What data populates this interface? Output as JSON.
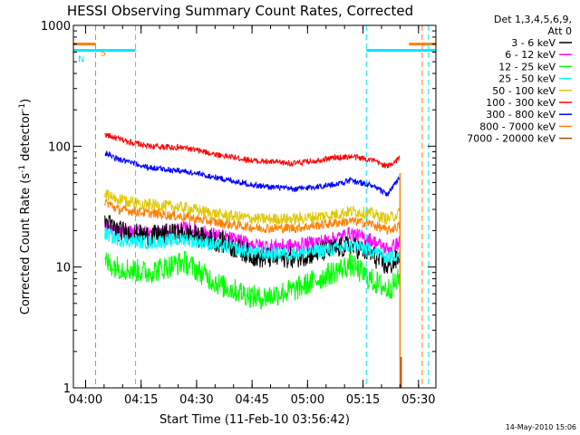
{
  "chart_data": {
    "type": "line",
    "title": "HESSI Observing Summary Count Rates, Corrected",
    "xlabel": "Start Time (11-Feb-10 03:56:42)",
    "ylabel_main": "Corrected Count Rate (s",
    "ylabel_exp1": "-1",
    "ylabel_mid": " detector",
    "ylabel_exp2": "-1",
    "ylabel_end": ")",
    "x_unit": "minutes after 03:56:42",
    "xlim": [
      0,
      98
    ],
    "ylim": [
      1,
      1000
    ],
    "yscale": "log",
    "x_tick_labels": [
      "04:00",
      "04:15",
      "04:30",
      "04:45",
      "05:00",
      "05:15",
      "05:30"
    ],
    "x_tick_values": [
      3.3,
      18.3,
      33.3,
      48.3,
      63.3,
      78.3,
      93.3
    ],
    "y_tick_labels": [
      "1",
      "10",
      "100",
      "1000"
    ],
    "y_tick_values": [
      1,
      10,
      100,
      1000
    ],
    "legend": {
      "header_line1": "Det 1,3,4,5,6,9,",
      "header_line2": "Att 0",
      "entries": [
        {
          "label": "3 - 6 keV",
          "color": "#000000"
        },
        {
          "label": "6 - 12 keV",
          "color": "#ff00ff"
        },
        {
          "label": "12 - 25 keV",
          "color": "#00ff00"
        },
        {
          "label": "25 - 50 keV",
          "color": "#00ffff"
        },
        {
          "label": "50 - 100 keV",
          "color": "#e0c800"
        },
        {
          "label": "100 - 300 keV",
          "color": "#ff0000"
        },
        {
          "label": "300 - 800 keV",
          "color": "#0000ff"
        },
        {
          "label": "800 - 7000 keV",
          "color": "#ff7f00"
        },
        {
          "label": "7000 - 20000 keV",
          "color": "#a05000"
        }
      ]
    },
    "flags": [
      {
        "label": "S",
        "color": "#ff7f00",
        "markers": [
          6.0,
          94.3
        ],
        "bars": [
          [
            0,
            6.0
          ],
          [
            90.7,
            98
          ]
        ],
        "bar_y": 700
      },
      {
        "label": "N",
        "color": "#00e5ff",
        "markers": [
          0,
          16.8,
          79.2,
          96.0
        ],
        "bars": [
          [
            0,
            16.8
          ],
          [
            79.2,
            98
          ]
        ],
        "bar_y": 620
      }
    ],
    "data_start": 8.5,
    "data_end": 88.2,
    "x_knots": [
      8.5,
      12,
      20,
      30,
      40,
      50,
      60,
      70,
      75,
      80,
      85,
      88.2
    ],
    "series": [
      {
        "color": "#ff0000",
        "values": [
          125,
          115,
          100,
          97,
          84,
          75,
          72,
          80,
          82,
          78,
          68,
          80
        ],
        "jitter": 0.025
      },
      {
        "color": "#0000ff",
        "values": [
          88,
          78,
          67,
          62,
          54,
          47,
          44,
          48,
          52,
          48,
          40,
          55
        ],
        "jitter": 0.025
      },
      {
        "color": "#e0c800",
        "values": [
          40,
          36,
          33,
          31,
          27,
          25,
          25,
          27,
          29,
          28,
          25,
          28
        ],
        "jitter": 0.05
      },
      {
        "color": "#ff7f00",
        "values": [
          35,
          30,
          28,
          26,
          23,
          21,
          21,
          23,
          24,
          23,
          20,
          22
        ],
        "jitter": 0.04
      },
      {
        "color": "#ff00ff",
        "values": [
          22,
          20,
          19,
          21,
          18,
          15,
          15,
          17,
          19,
          17,
          14,
          16
        ],
        "jitter": 0.06
      },
      {
        "color": "#000000",
        "values": [
          24,
          20,
          18,
          19,
          16,
          12,
          12,
          14,
          15,
          13,
          10,
          12
        ],
        "jitter": 0.09
      },
      {
        "color": "#00ffff",
        "values": [
          19,
          17,
          16,
          17,
          15,
          13,
          13,
          14,
          15,
          14,
          12,
          13
        ],
        "jitter": 0.06
      },
      {
        "color": "#00ff00",
        "values": [
          11,
          10,
          9,
          11,
          7,
          5.5,
          6.5,
          9,
          10.5,
          8,
          6.5,
          8
        ],
        "jitter": 0.1
      }
    ],
    "timestamp": "14-May-2010 15:06"
  }
}
